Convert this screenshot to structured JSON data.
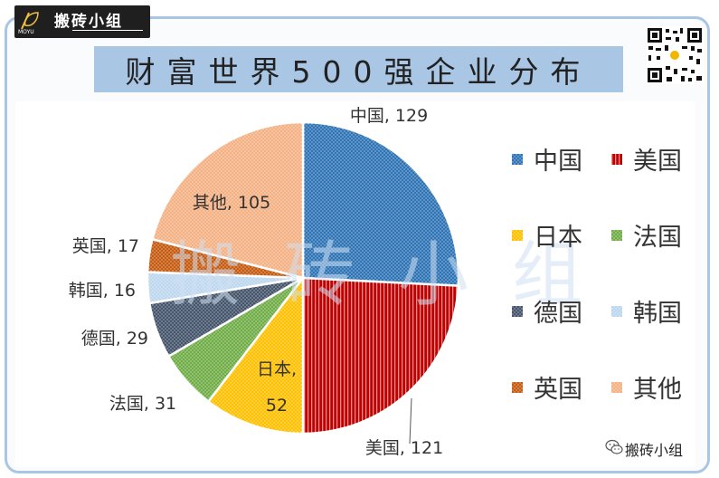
{
  "logo": {
    "text": "搬砖小组",
    "sub": "MOYU"
  },
  "title": "财富世界500强企业分布",
  "watermark": "搬砖小组",
  "footer": {
    "account": "搬砖小组"
  },
  "colors": {
    "frame": "#a9c6e4",
    "title_bg": "#a9c6e4",
    "中国": "#2e74b5",
    "美国": "#c00000",
    "日本": "#ffc000",
    "法国": "#70ad47",
    "德国": "#44546a",
    "韩国": "#bdd7ee",
    "英国": "#c55a11",
    "其他": "#f4b183"
  },
  "chart_data": {
    "type": "pie",
    "title": "财富世界500强企业分布",
    "categories": [
      "中国",
      "美国",
      "日本",
      "法国",
      "德国",
      "韩国",
      "英国",
      "其他"
    ],
    "values": [
      129,
      121,
      52,
      31,
      29,
      16,
      17,
      105
    ],
    "data_labels": [
      "中国, 129",
      "美国, 121",
      "日本,",
      "法国, 31",
      "德国, 29",
      "韩国, 16",
      "英国, 17",
      "其他, 105"
    ],
    "data_label_extra": {
      "日本": "52"
    },
    "start_angle_deg": 0,
    "direction": "clockwise",
    "legend": {
      "placement": "right",
      "entries": [
        "中国",
        "美国",
        "日本",
        "法国",
        "德国",
        "韩国",
        "英国",
        "其他"
      ]
    }
  }
}
